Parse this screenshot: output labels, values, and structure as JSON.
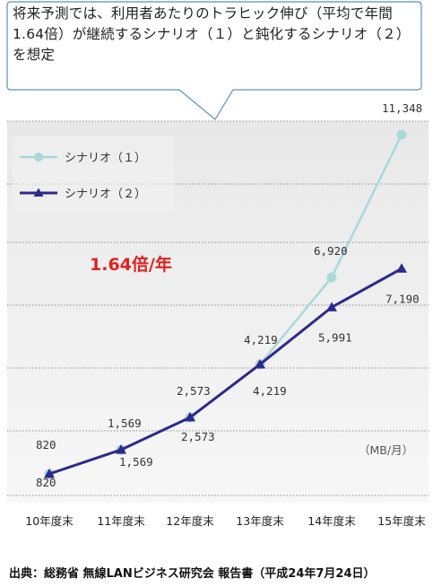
{
  "callout": {
    "text": "将来予測では、利用者あたりのトラヒック伸び（平均で年間1.64倍）が継続するシナリオ（１）と鈍化するシナリオ（２）を想定"
  },
  "growth_label": "1.64倍/年",
  "unit_label": "（MB/月）",
  "source": "出典：総務省 無線LANビジネス研究会 報告書（平成24年7月24日）",
  "colors": {
    "scenario1": "#a9d8d8",
    "scenario2": "#2b2a8c",
    "growth": "#e02020",
    "grid": "#8a8a8a",
    "plot_bg_top": "#e8e8e8",
    "plot_bg_bottom": "#f7f7f7",
    "callout_border": "#5b8fc9"
  },
  "chart_data": {
    "type": "line",
    "categories": [
      "10年度末",
      "11年度末",
      "12年度末",
      "13年度末",
      "14年度末",
      "15年度末"
    ],
    "series": [
      {
        "name": "シナリオ（１）",
        "values": [
          820,
          1569,
          2573,
          4219,
          6920,
          11348
        ],
        "labels": [
          "820",
          "1,569",
          "2,573",
          "4,219",
          "6,920",
          "11,348"
        ],
        "marker": "circle"
      },
      {
        "name": "シナリオ（２）",
        "values": [
          820,
          1569,
          2573,
          4219,
          5991,
          7190
        ],
        "labels": [
          "820",
          "1,569",
          "2,573",
          "4,219",
          "5,991",
          "7,190"
        ],
        "marker": "triangle"
      }
    ],
    "ylabel": "（MB/月）",
    "grid": true,
    "legend": "top-left"
  }
}
